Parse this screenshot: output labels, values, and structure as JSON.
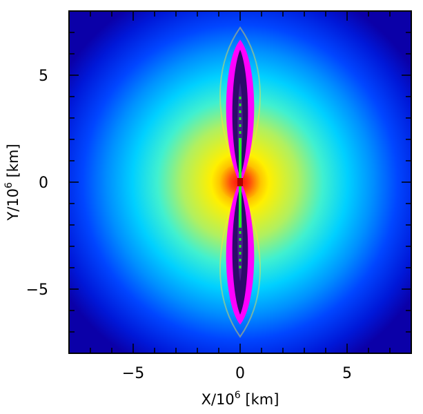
{
  "figure": {
    "type": "field-map",
    "colormap": [
      "#0b00a8",
      "#0018d8",
      "#0046ff",
      "#0090ff",
      "#00d0ff",
      "#40f0d0",
      "#b0f060",
      "#fff000",
      "#ff9000",
      "#ff2000"
    ],
    "lobe_colors": {
      "interior": "#300a70",
      "rim": "#ff00ff",
      "axis_core": "#22ee22",
      "center_glow": "#ff1a10"
    }
  },
  "axes": {
    "x": {
      "label_prefix": "X/10",
      "label_exp": "6",
      "label_unit": " [km]",
      "range": [
        -8,
        8
      ],
      "major_ticks": [
        -5,
        0,
        5
      ],
      "tick_labels": [
        "−5",
        "0",
        "5"
      ],
      "minor_step": 1
    },
    "y": {
      "label_prefix": "Y/10",
      "label_exp": "6",
      "label_unit": " [km]",
      "range": [
        -8,
        8
      ],
      "major_ticks": [
        -5,
        0,
        5
      ],
      "tick_labels": [
        "−5",
        "0",
        "5"
      ],
      "minor_step": 1
    }
  }
}
